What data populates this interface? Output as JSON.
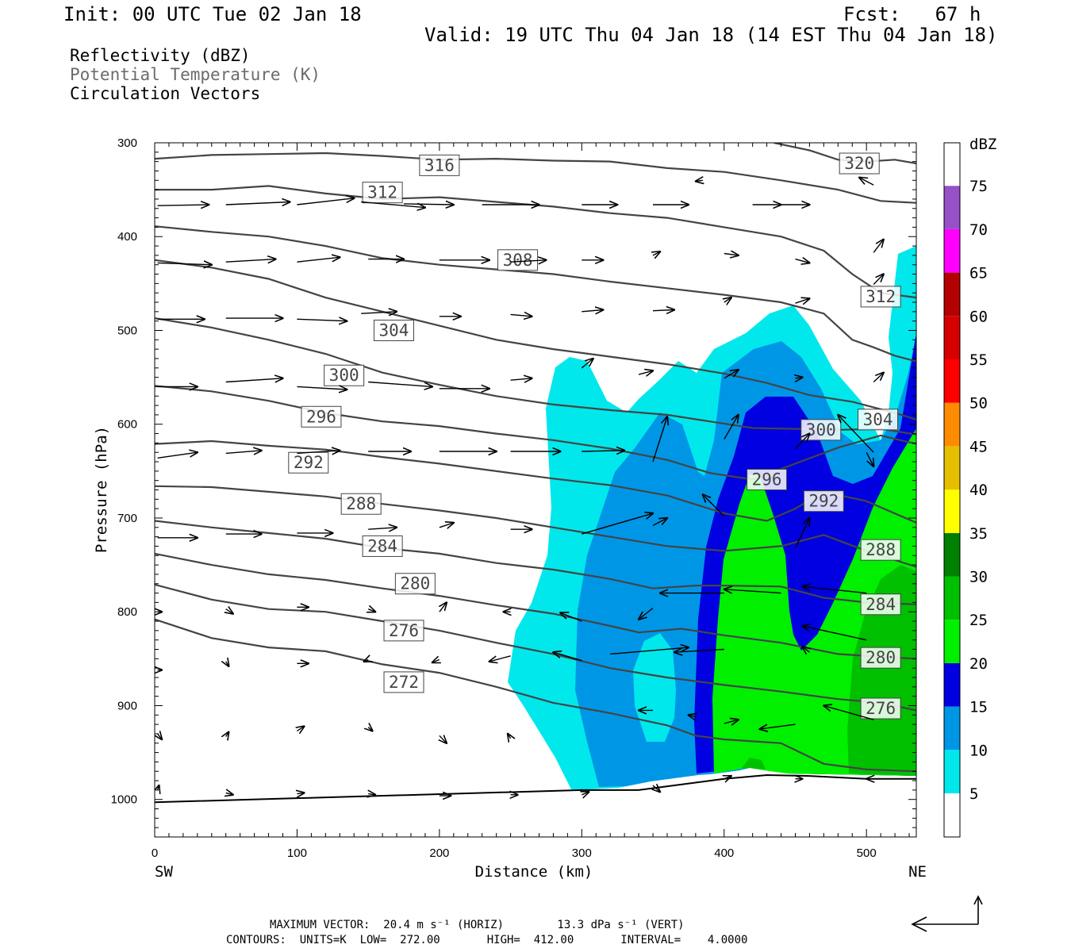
{
  "header": {
    "init": "Init: 00 UTC Tue 02 Jan 18",
    "fcst": "Fcst:   67 h",
    "valid": "Valid: 19 UTC Thu 04 Jan 18 (14 EST Thu 04 Jan 18)"
  },
  "fields": {
    "reflectivity": "Reflectivity (dBZ)",
    "theta": "Potential Temperature (K)",
    "vectors": "Circulation Vectors"
  },
  "footer": {
    "max_vector": "MAXIMUM VECTOR:  20.4 m s⁻¹ (HORIZ)        13.3 dPa s⁻¹ (VERT)",
    "contours": "CONTOURS:  UNITS=K  LOW=  272.00       HIGH=  412.00       INTERVAL=    4.0000"
  },
  "colors": {
    "contour": "#444444",
    "dbz_5": "#00e8ec",
    "dbz_10": "#0096e6",
    "dbz_15": "#0000e0",
    "dbz_20": "#00f000",
    "dbz_25": "#00c000"
  },
  "chart_data": {
    "type": "cross-section",
    "xlabel": "Distance (km)",
    "ylabel": "Pressure (hPa)",
    "xlim": [
      0,
      535
    ],
    "ylim": [
      1040,
      300
    ],
    "x_ticks": [
      0,
      100,
      200,
      300,
      400,
      500
    ],
    "y_ticks": [
      300,
      400,
      500,
      600,
      700,
      800,
      900,
      1000
    ],
    "endpoints": {
      "left": "SW",
      "right": "NE"
    },
    "colorbar": {
      "unit": "dBZ",
      "levels": [
        5,
        10,
        15,
        20,
        25,
        30,
        35,
        40,
        45,
        50,
        55,
        60,
        65,
        70,
        75
      ],
      "colors": [
        "#00e8ec",
        "#0096e6",
        "#0000e0",
        "#00f000",
        "#00c000",
        "#008000",
        "#ffff00",
        "#e6be00",
        "#ff8c00",
        "#ff0000",
        "#d70000",
        "#b40000",
        "#ff00ff",
        "#9650c8",
        "#ffffff"
      ]
    },
    "theta_contours": [
      {
        "label": "272",
        "points": [
          [
            0,
            808
          ],
          [
            40,
            828
          ],
          [
            80,
            838
          ],
          [
            120,
            842
          ],
          [
            160,
            856
          ],
          [
            200,
            865
          ],
          [
            240,
            880
          ],
          [
            280,
            897
          ],
          [
            320,
            908
          ],
          [
            360,
            921
          ],
          [
            380,
            932
          ],
          [
            400,
            936
          ],
          [
            440,
            940
          ],
          [
            470,
            962
          ],
          [
            500,
            968
          ],
          [
            535,
            970
          ]
        ]
      },
      {
        "label": "276",
        "points": [
          [
            0,
            771
          ],
          [
            40,
            787
          ],
          [
            80,
            797
          ],
          [
            120,
            800
          ],
          [
            160,
            810
          ],
          [
            200,
            820
          ],
          [
            240,
            833
          ],
          [
            280,
            845
          ],
          [
            320,
            860
          ],
          [
            360,
            870
          ],
          [
            400,
            878
          ],
          [
            440,
            885
          ],
          [
            480,
            893
          ],
          [
            510,
            897
          ],
          [
            535,
            905
          ]
        ]
      },
      {
        "label": "280",
        "points": [
          [
            0,
            738
          ],
          [
            40,
            750
          ],
          [
            80,
            760
          ],
          [
            120,
            766
          ],
          [
            160,
            775
          ],
          [
            200,
            783
          ],
          [
            240,
            793
          ],
          [
            280,
            802
          ],
          [
            320,
            815
          ],
          [
            340,
            822
          ],
          [
            370,
            818
          ],
          [
            400,
            825
          ],
          [
            440,
            833
          ],
          [
            480,
            845
          ],
          [
            510,
            848
          ],
          [
            535,
            850
          ]
        ]
      },
      {
        "label": "284",
        "points": [
          [
            0,
            703
          ],
          [
            40,
            710
          ],
          [
            80,
            716
          ],
          [
            120,
            722
          ],
          [
            160,
            732
          ],
          [
            200,
            738
          ],
          [
            240,
            748
          ],
          [
            280,
            755
          ],
          [
            320,
            765
          ],
          [
            350,
            775
          ],
          [
            380,
            772
          ],
          [
            400,
            772
          ],
          [
            440,
            773
          ],
          [
            470,
            785
          ],
          [
            500,
            790
          ],
          [
            535,
            792
          ]
        ]
      },
      {
        "label": "288",
        "points": [
          [
            0,
            666
          ],
          [
            40,
            667
          ],
          [
            80,
            672
          ],
          [
            120,
            677
          ],
          [
            160,
            685
          ],
          [
            200,
            692
          ],
          [
            240,
            700
          ],
          [
            280,
            710
          ],
          [
            320,
            720
          ],
          [
            360,
            730
          ],
          [
            400,
            735
          ],
          [
            440,
            730
          ],
          [
            470,
            718
          ],
          [
            500,
            735
          ],
          [
            535,
            752
          ]
        ]
      },
      {
        "label": "292",
        "points": [
          [
            0,
            621
          ],
          [
            40,
            618
          ],
          [
            80,
            623
          ],
          [
            120,
            627
          ],
          [
            160,
            635
          ],
          [
            200,
            642
          ],
          [
            240,
            650
          ],
          [
            280,
            658
          ],
          [
            320,
            665
          ],
          [
            360,
            676
          ],
          [
            400,
            695
          ],
          [
            430,
            703
          ],
          [
            450,
            690
          ],
          [
            470,
            672
          ],
          [
            500,
            682
          ],
          [
            535,
            705
          ]
        ]
      },
      {
        "label": "296",
        "points": [
          [
            0,
            559
          ],
          [
            40,
            565
          ],
          [
            80,
            575
          ],
          [
            120,
            588
          ],
          [
            160,
            597
          ],
          [
            200,
            602
          ],
          [
            240,
            610
          ],
          [
            280,
            617
          ],
          [
            320,
            626
          ],
          [
            360,
            638
          ],
          [
            390,
            652
          ],
          [
            420,
            659
          ],
          [
            450,
            642
          ],
          [
            480,
            625
          ],
          [
            510,
            612
          ],
          [
            535,
            621
          ]
        ]
      },
      {
        "label": "300",
        "points": [
          [
            0,
            487
          ],
          [
            40,
            497
          ],
          [
            80,
            510
          ],
          [
            120,
            525
          ],
          [
            160,
            545
          ],
          [
            200,
            558
          ],
          [
            240,
            570
          ],
          [
            280,
            579
          ],
          [
            320,
            585
          ],
          [
            360,
            590
          ],
          [
            390,
            597
          ],
          [
            420,
            604
          ],
          [
            450,
            605
          ],
          [
            480,
            606
          ],
          [
            510,
            605
          ],
          [
            535,
            611
          ]
        ]
      },
      {
        "label": "304",
        "points": [
          [
            0,
            425
          ],
          [
            40,
            433
          ],
          [
            80,
            445
          ],
          [
            120,
            465
          ],
          [
            160,
            480
          ],
          [
            200,
            495
          ],
          [
            240,
            510
          ],
          [
            280,
            520
          ],
          [
            320,
            528
          ],
          [
            360,
            536
          ],
          [
            400,
            546
          ],
          [
            430,
            556
          ],
          [
            460,
            569
          ],
          [
            490,
            576
          ],
          [
            520,
            588
          ],
          [
            535,
            595
          ]
        ]
      },
      {
        "label": "308",
        "points": [
          [
            0,
            389
          ],
          [
            40,
            395
          ],
          [
            80,
            400
          ],
          [
            120,
            410
          ],
          [
            160,
            423
          ],
          [
            200,
            430
          ],
          [
            240,
            435
          ],
          [
            280,
            440
          ],
          [
            320,
            448
          ],
          [
            360,
            455
          ],
          [
            400,
            462
          ],
          [
            440,
            470
          ],
          [
            470,
            482
          ],
          [
            490,
            510
          ],
          [
            505,
            518
          ],
          [
            520,
            527
          ],
          [
            535,
            533
          ]
        ]
      },
      {
        "label": "312",
        "points": [
          [
            0,
            350
          ],
          [
            40,
            350
          ],
          [
            80,
            346
          ],
          [
            120,
            354
          ],
          [
            160,
            360
          ],
          [
            200,
            358
          ],
          [
            240,
            363
          ],
          [
            280,
            368
          ],
          [
            320,
            375
          ],
          [
            360,
            380
          ],
          [
            400,
            390
          ],
          [
            440,
            400
          ],
          [
            470,
            415
          ],
          [
            490,
            440
          ],
          [
            510,
            460
          ],
          [
            535,
            465
          ]
        ]
      },
      {
        "label": "316",
        "points": [
          [
            0,
            317
          ],
          [
            40,
            313
          ],
          [
            80,
            312
          ],
          [
            120,
            311
          ],
          [
            160,
            314
          ],
          [
            200,
            318
          ],
          [
            240,
            317
          ],
          [
            280,
            319
          ],
          [
            320,
            320
          ],
          [
            360,
            327
          ],
          [
            400,
            331
          ],
          [
            440,
            340
          ],
          [
            480,
            350
          ],
          [
            510,
            362
          ],
          [
            535,
            364
          ]
        ]
      },
      {
        "label": "320",
        "points": [
          [
            435,
            300
          ],
          [
            460,
            308
          ],
          [
            480,
            318
          ],
          [
            500,
            320
          ],
          [
            520,
            318
          ],
          [
            535,
            322
          ]
        ]
      }
    ],
    "terrain_surface_hPa": [
      [
        300,
        990
      ],
      [
        340,
        990
      ],
      [
        400,
        978
      ],
      [
        430,
        974
      ],
      [
        460,
        975
      ],
      [
        500,
        978
      ],
      [
        535,
        978
      ]
    ]
  }
}
